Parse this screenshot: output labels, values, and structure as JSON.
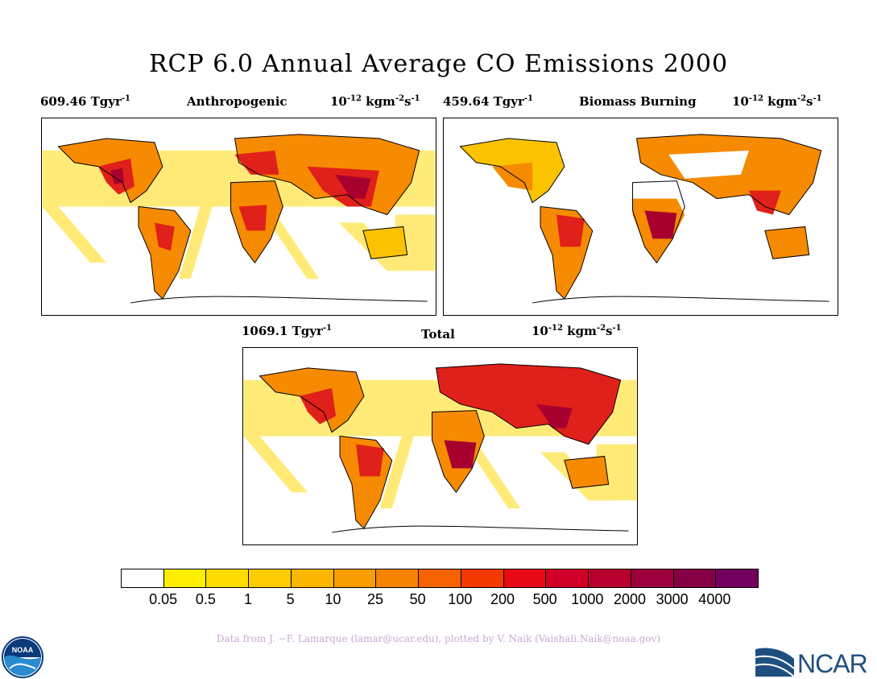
{
  "title": "RCP 6.0 Annual Average CO Emissions 2000",
  "panels": [
    {
      "total": "609.46 Tgyr",
      "total_exp": "-1",
      "name": "Anthropogenic",
      "units_base": "10",
      "units_exp": "-12",
      "units_rest": " kgm",
      "units_exp2": "-2",
      "units_s": "s",
      "units_exp3": "-1"
    },
    {
      "total": "459.64 Tgyr",
      "total_exp": "-1",
      "name": "Biomass Burning",
      "units_base": "10",
      "units_exp": "-12",
      "units_rest": " kgm",
      "units_exp2": "-2",
      "units_s": "s",
      "units_exp3": "-1"
    },
    {
      "total": "1069.1 Tgyr",
      "total_exp": "-1",
      "name": "Total",
      "units_base": "10",
      "units_exp": "-12",
      "units_rest": " kgm",
      "units_exp2": "-2",
      "units_s": "s",
      "units_exp3": "-1"
    }
  ],
  "colorbar": {
    "colors": [
      "#ffffff",
      "#ffee00",
      "#fedc00",
      "#fdcc00",
      "#fbb700",
      "#f89e00",
      "#f68400",
      "#f56200",
      "#f23a00",
      "#e80a14",
      "#d10028",
      "#b8002f",
      "#9c003a",
      "#850045",
      "#73005e"
    ],
    "labels": [
      "0.05",
      "0.5",
      "1",
      "5",
      "10",
      "25",
      "50",
      "100",
      "200",
      "500",
      "1000",
      "2000",
      "3000",
      "4000"
    ]
  },
  "credit": "Data from J. −F. Lamarque (lamar@ucar.edu), plotted by V. Naik (Vaishali.Naik@noaa.gov)",
  "logos": {
    "left": "NOAA",
    "right": "NCAR"
  },
  "map_colors": {
    "ocean_ship": "#ffe760",
    "low": "#fbc200",
    "mid": "#f68a00",
    "high": "#e0201a",
    "very_high": "#a8002e"
  }
}
